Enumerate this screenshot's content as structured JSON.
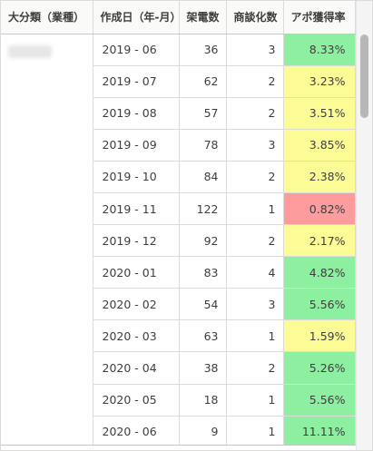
{
  "columns": [
    "大分類（業種）",
    "作成日（年-月）",
    "架電数",
    "商談化数",
    "アポ獲得率"
  ],
  "rows": [
    {
      "date": "2019 - 06",
      "calls": "36",
      "deals": "3",
      "rate": "8.33%",
      "color": "green"
    },
    {
      "date": "2019 - 07",
      "calls": "62",
      "deals": "2",
      "rate": "3.23%",
      "color": "yellow"
    },
    {
      "date": "2019 - 08",
      "calls": "57",
      "deals": "2",
      "rate": "3.51%",
      "color": "yellow"
    },
    {
      "date": "2019 - 09",
      "calls": "78",
      "deals": "3",
      "rate": "3.85%",
      "color": "yellow"
    },
    {
      "date": "2019 - 10",
      "calls": "84",
      "deals": "2",
      "rate": "2.38%",
      "color": "yellow"
    },
    {
      "date": "2019 - 11",
      "calls": "122",
      "deals": "1",
      "rate": "0.82%",
      "color": "red"
    },
    {
      "date": "2019 - 12",
      "calls": "92",
      "deals": "2",
      "rate": "2.17%",
      "color": "yellow"
    },
    {
      "date": "2020 - 01",
      "calls": "83",
      "deals": "4",
      "rate": "4.82%",
      "color": "green"
    },
    {
      "date": "2020 - 02",
      "calls": "54",
      "deals": "3",
      "rate": "5.56%",
      "color": "green"
    },
    {
      "date": "2020 - 03",
      "calls": "63",
      "deals": "1",
      "rate": "1.59%",
      "color": "yellow"
    },
    {
      "date": "2020 - 04",
      "calls": "38",
      "deals": "2",
      "rate": "5.26%",
      "color": "green"
    },
    {
      "date": "2020 - 05",
      "calls": "18",
      "deals": "1",
      "rate": "5.56%",
      "color": "green"
    },
    {
      "date": "2020 - 06",
      "calls": "9",
      "deals": "1",
      "rate": "11.11%",
      "color": "green"
    }
  ],
  "colors": {
    "green": "#8cf0a0",
    "yellow": "#fcfc96",
    "red": "#fc9c9c"
  }
}
